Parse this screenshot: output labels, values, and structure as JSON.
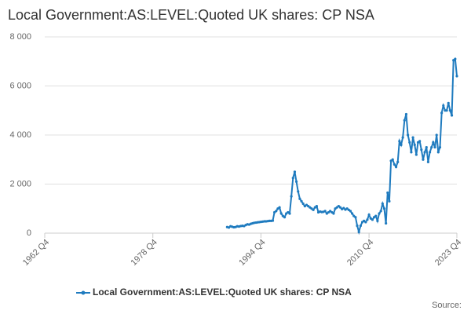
{
  "chart_data": {
    "type": "line",
    "title": "Local Government:AS:LEVEL:Quoted UK shares: CP NSA",
    "source": "Source:",
    "categories": [
      "1962 Q4",
      null,
      null,
      null,
      null,
      null,
      null,
      null,
      null,
      null,
      null,
      null,
      null,
      null,
      null,
      null,
      null,
      null,
      null,
      null,
      null,
      null,
      null,
      null,
      null,
      null,
      null,
      null,
      null,
      null,
      null,
      null,
      null,
      null,
      null,
      null,
      null,
      null,
      null,
      null,
      null,
      null,
      null,
      null,
      null,
      null,
      null,
      null,
      null,
      null,
      null,
      null,
      null,
      null,
      null,
      null,
      null,
      null,
      null,
      null,
      null,
      null,
      null,
      null,
      "1978 Q4",
      null,
      null,
      null,
      null,
      null,
      null,
      null,
      null,
      null,
      null,
      null,
      null,
      null,
      null,
      null,
      null,
      null,
      null,
      null,
      null,
      null,
      null,
      null,
      null,
      null,
      null,
      null,
      null,
      null,
      null,
      null,
      null,
      null,
      null,
      null,
      null,
      null,
      null,
      null,
      null,
      null,
      null,
      null,
      null,
      null,
      null,
      null,
      null,
      null,
      null,
      null,
      null,
      null,
      null,
      null,
      null,
      null,
      null,
      null,
      null,
      null,
      null,
      null,
      "1994 Q4",
      null,
      null,
      null,
      null,
      null,
      null,
      null,
      null,
      null,
      null,
      null,
      null,
      null,
      null,
      null,
      null,
      null,
      null,
      null,
      null,
      null,
      null,
      null,
      null,
      null,
      null,
      null,
      null,
      null,
      null,
      null,
      null,
      null,
      null,
      null,
      null,
      null,
      null,
      null,
      null,
      null,
      null,
      null,
      null,
      null,
      null,
      null,
      null,
      null,
      null,
      null,
      null,
      null,
      null,
      null,
      null,
      null,
      null,
      null,
      null,
      null,
      null,
      null,
      "2010 Q4",
      null,
      null,
      null,
      null,
      null,
      null,
      null,
      null,
      null,
      null,
      null,
      null,
      null,
      null,
      null,
      null,
      null,
      null,
      null,
      null,
      null,
      null,
      null,
      null,
      null,
      null,
      null,
      null,
      null,
      null,
      null,
      null,
      null,
      null,
      null,
      null,
      null,
      null,
      null,
      null,
      null,
      null,
      null,
      null,
      null,
      null,
      null,
      null,
      null,
      null,
      null,
      "2023 Q4"
    ],
    "series": [
      {
        "name": "Local Government:AS:LEVEL:Quoted UK shares: CP NSA",
        "color": "#1f7bbf",
        "values": [
          null,
          null,
          null,
          null,
          null,
          null,
          null,
          null,
          null,
          null,
          null,
          null,
          null,
          null,
          null,
          null,
          null,
          null,
          null,
          null,
          null,
          null,
          null,
          null,
          null,
          null,
          null,
          null,
          null,
          null,
          null,
          null,
          null,
          null,
          null,
          null,
          null,
          null,
          null,
          null,
          null,
          null,
          null,
          null,
          null,
          null,
          null,
          null,
          null,
          null,
          null,
          null,
          null,
          null,
          null,
          null,
          null,
          null,
          null,
          null,
          null,
          null,
          null,
          null,
          null,
          null,
          null,
          null,
          null,
          null,
          null,
          null,
          null,
          null,
          null,
          null,
          null,
          null,
          null,
          null,
          null,
          null,
          null,
          null,
          null,
          null,
          null,
          null,
          null,
          null,
          null,
          null,
          null,
          null,
          null,
          null,
          null,
          null,
          null,
          null,
          null,
          null,
          null,
          null,
          null,
          null,
          null,
          null,
          250,
          230,
          280,
          260,
          240,
          250,
          280,
          270,
          290,
          300,
          290,
          330,
          360,
          350,
          380,
          400,
          420,
          430,
          440,
          450,
          460,
          470,
          480,
          480,
          490,
          500,
          500,
          510,
          850,
          900,
          1000,
          1050,
          800,
          700,
          650,
          800,
          850,
          800,
          1500,
          2250,
          2500,
          2100,
          1700,
          1400,
          1300,
          1200,
          1100,
          1150,
          1100,
          1050,
          1000,
          950,
          1050,
          1100,
          850,
          880,
          860,
          870,
          900,
          800,
          850,
          900,
          850,
          800,
          1000,
          1050,
          1100,
          1050,
          980,
          1020,
          960,
          1000,
          950,
          900,
          800,
          700,
          650,
          300,
          50,
          300,
          450,
          500,
          450,
          550,
          750,
          600,
          550,
          650,
          700,
          500,
          800,
          900,
          1200,
          1000,
          400,
          1650,
          1300,
          2950,
          3000,
          2800,
          2700,
          2900,
          3750,
          3600,
          3900,
          4600,
          4850,
          4000,
          3700,
          3300,
          3900,
          3600,
          3200,
          3700,
          3750,
          3400,
          3000,
          3300,
          3500,
          2900,
          3300,
          3500,
          3700,
          3500,
          4000,
          3300,
          3500,
          4900,
          5200,
          5000,
          5000,
          5300,
          5000,
          4800,
          7050,
          7100,
          6400
        ]
      }
    ],
    "ylim": [
      0,
      8000
    ],
    "yticks": [
      0,
      {
        "value": 2000,
        "label": "2 000"
      },
      {
        "value": 4000,
        "label": "4 000"
      },
      {
        "value": 6000,
        "label": "6 000"
      },
      {
        "value": 8000,
        "label": "8 000"
      }
    ],
    "grid": true
  }
}
